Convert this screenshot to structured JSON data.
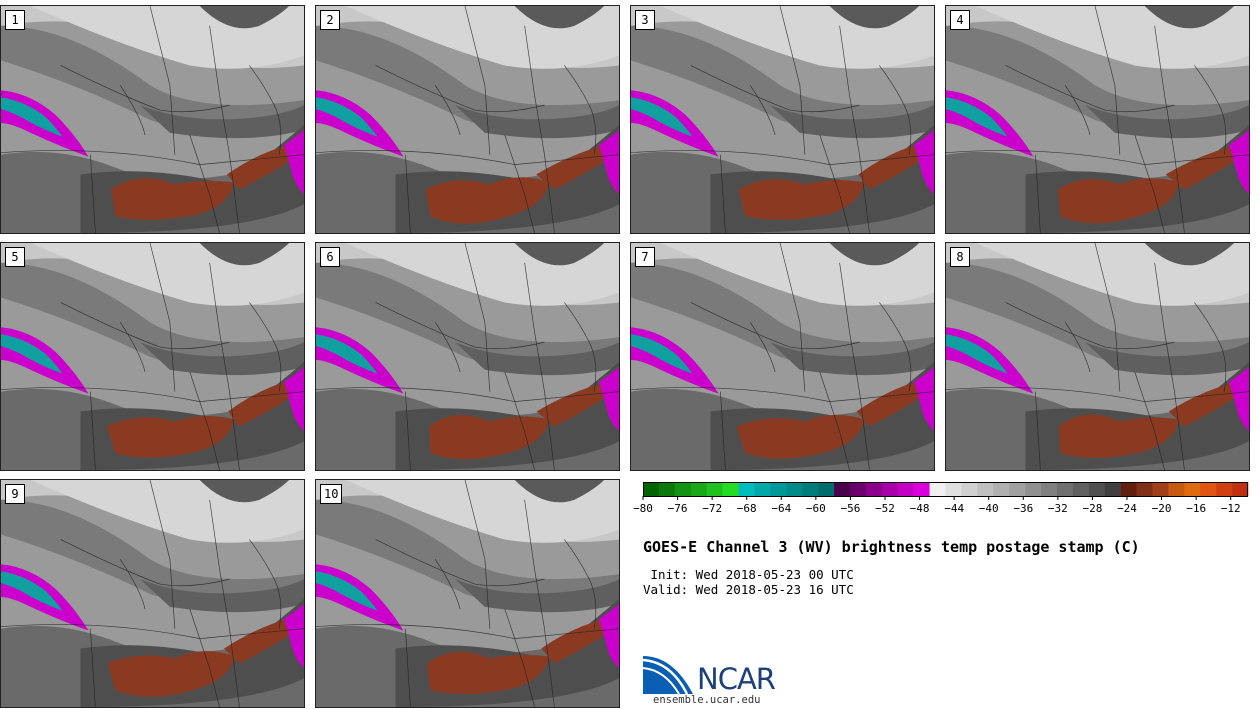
{
  "panels": [
    "1",
    "2",
    "3",
    "4",
    "5",
    "6",
    "7",
    "8",
    "9",
    "10"
  ],
  "colorbar": {
    "ticks": [
      "-80",
      "-76",
      "-72",
      "-68",
      "-64",
      "-60",
      "-56",
      "-52",
      "-48",
      "-44",
      "-40",
      "-36",
      "-32",
      "-28",
      "-24",
      "-20",
      "-16",
      "-12"
    ],
    "range": [
      -80,
      -10
    ],
    "colors": [
      "#006400",
      "#0b7a0b",
      "#139313",
      "#1aa81a",
      "#20c020",
      "#22dd22",
      "#00bcbc",
      "#00a8a8",
      "#009898",
      "#008a8a",
      "#007c7c",
      "#006d6d",
      "#4a004a",
      "#6b006b",
      "#8a008a",
      "#a800a8",
      "#c400c4",
      "#dc00dc",
      "#f0f0f0",
      "#e0e0e0",
      "#d0d0d0",
      "#c0c0c0",
      "#b0b0b0",
      "#a0a0a0",
      "#909090",
      "#808080",
      "#707070",
      "#606060",
      "#505050",
      "#404040",
      "#602010",
      "#803015",
      "#a0401a",
      "#c85a10",
      "#e06a10",
      "#e05512",
      "#d04010",
      "#c03010"
    ]
  },
  "title": "GOES-E Channel 3 (WV) brightness temp postage stamp (C)",
  "init": " Init: Wed 2018-05-23 00 UTC",
  "valid": "Valid: Wed 2018-05-23 16 UTC",
  "logo_text": "NCAR",
  "url": "ensemble.ucar.edu",
  "colors": {
    "moist_red": "#8b3a22",
    "moist_red_light": "#c0502a",
    "magenta": "#cc00cc",
    "teal": "#11a0a0"
  }
}
